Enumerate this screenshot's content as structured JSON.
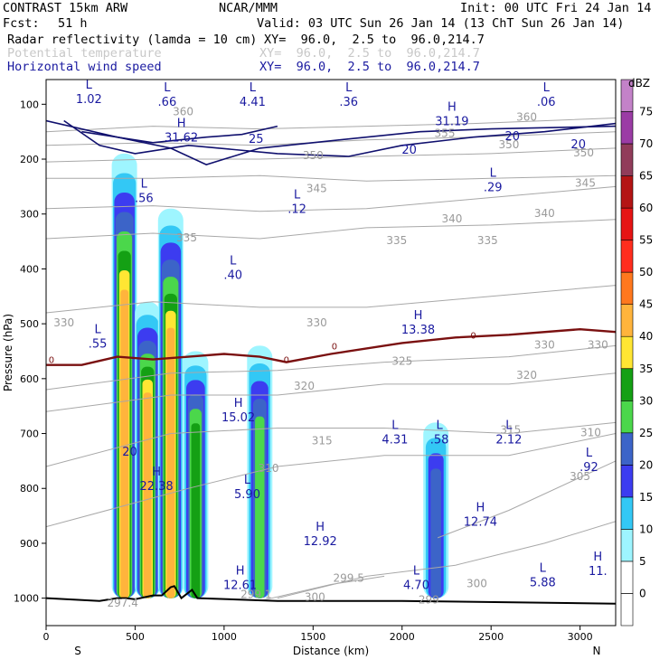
{
  "header": {
    "title": "CONTRAST 15km ARW",
    "org": "NCAR/MMM",
    "init": "Init: 00 UTC Fri 24 Jan 14",
    "fcst_label": "Fcst:",
    "fcst_value": "51 h",
    "valid": "Valid: 03 UTC Sun 26 Jan 14 (13 ChT Sun 26 Jan 14)",
    "fields": [
      {
        "name": "Radar reflectivity (lamda = 10 cm)",
        "xy": "XY=  96.0,  2.5 to  96.0,214.7"
      },
      {
        "name": "Potential temperature",
        "xy": "XY=  96.0,  2.5 to  96.0,214.7"
      },
      {
        "name": "Horizontal wind speed",
        "xy": "XY=  96.0,  2.5 to  96.0,214.7"
      }
    ]
  },
  "chart_data": {
    "type": "cross-section",
    "xlabel": "Distance (km)",
    "ylabel": "Pressure (hPa)",
    "xlim": [
      0,
      3200
    ],
    "ylim": [
      1050,
      55
    ],
    "xticks": [
      0,
      500,
      1000,
      1500,
      2000,
      2500,
      3000
    ],
    "yticks": [
      100,
      200,
      300,
      400,
      500,
      600,
      700,
      800,
      900,
      1000
    ],
    "x_end_labels": {
      "left": "S",
      "right": "N"
    },
    "colorbar": {
      "title": "dBZ",
      "levels": [
        0,
        5,
        10,
        15,
        20,
        25,
        30,
        35,
        40,
        45,
        50,
        55,
        60,
        65,
        70,
        75
      ],
      "colors": [
        "#ffffff",
        "#9ef5ff",
        "#33c8f5",
        "#3c3cf0",
        "#3c64c8",
        "#4bd74b",
        "#14a014",
        "#ffe633",
        "#ffb43c",
        "#ff781e",
        "#ff2d1e",
        "#e61414",
        "#b41414",
        "#913c5a",
        "#9b3ca5",
        "#c382c8"
      ]
    },
    "reflectivity_columns": [
      {
        "x": 440,
        "top": 190,
        "base": 1000,
        "peak_dbz": 40
      },
      {
        "x": 570,
        "top": 460,
        "base": 1000,
        "peak_dbz": 40
      },
      {
        "x": 700,
        "top": 290,
        "base": 1000,
        "peak_dbz": 40
      },
      {
        "x": 840,
        "top": 550,
        "base": 1000,
        "peak_dbz": 30
      },
      {
        "x": 1200,
        "top": 540,
        "base": 1000,
        "peak_dbz": 25
      },
      {
        "x": 2190,
        "top": 680,
        "base": 1000,
        "peak_dbz": 20
      }
    ],
    "theta_contours": [
      {
        "label": "360",
        "points": [
          [
            0,
            150
          ],
          [
            600,
            140
          ],
          [
            1200,
            145
          ],
          [
            1800,
            140
          ],
          [
            2400,
            135
          ],
          [
            3200,
            125
          ]
        ]
      },
      {
        "label": "355",
        "points": [
          [
            0,
            175
          ],
          [
            600,
            170
          ],
          [
            1200,
            175
          ],
          [
            1800,
            165
          ],
          [
            2400,
            160
          ],
          [
            3200,
            150
          ]
        ]
      },
      {
        "label": "350",
        "points": [
          [
            0,
            205
          ],
          [
            600,
            200
          ],
          [
            1200,
            200
          ],
          [
            1800,
            195
          ],
          [
            2500,
            190
          ],
          [
            3200,
            180
          ]
        ]
      },
      {
        "label": "345",
        "points": [
          [
            0,
            235
          ],
          [
            600,
            235
          ],
          [
            1200,
            230
          ],
          [
            1800,
            240
          ],
          [
            2500,
            235
          ],
          [
            3200,
            230
          ]
        ]
      },
      {
        "label": "340",
        "points": [
          [
            0,
            290
          ],
          [
            600,
            285
          ],
          [
            1200,
            295
          ],
          [
            1800,
            290
          ],
          [
            2500,
            270
          ],
          [
            3200,
            250
          ]
        ]
      },
      {
        "label": "335",
        "points": [
          [
            0,
            345
          ],
          [
            600,
            335
          ],
          [
            1200,
            345
          ],
          [
            1800,
            325
          ],
          [
            2500,
            320
          ],
          [
            3200,
            310
          ]
        ]
      },
      {
        "label": "330",
        "points": [
          [
            0,
            480
          ],
          [
            600,
            460
          ],
          [
            1200,
            470
          ],
          [
            1800,
            470
          ],
          [
            2500,
            450
          ],
          [
            3200,
            430
          ]
        ]
      },
      {
        "label": "325",
        "points": [
          [
            0,
            620
          ],
          [
            700,
            590
          ],
          [
            1300,
            585
          ],
          [
            1900,
            570
          ],
          [
            2600,
            560
          ],
          [
            3200,
            540
          ]
        ]
      },
      {
        "label": "320",
        "points": [
          [
            0,
            660
          ],
          [
            700,
            630
          ],
          [
            1300,
            630
          ],
          [
            1900,
            610
          ],
          [
            2600,
            610
          ],
          [
            3200,
            590
          ]
        ]
      },
      {
        "label": "315",
        "points": [
          [
            0,
            760
          ],
          [
            700,
            700
          ],
          [
            1300,
            690
          ],
          [
            1900,
            690
          ],
          [
            2600,
            700
          ],
          [
            3200,
            680
          ]
        ]
      },
      {
        "label": "310",
        "points": [
          [
            0,
            870
          ],
          [
            800,
            800
          ],
          [
            1300,
            760
          ],
          [
            1900,
            740
          ],
          [
            2600,
            740
          ],
          [
            3200,
            700
          ]
        ]
      },
      {
        "label": "305",
        "points": [
          [
            2200,
            890
          ],
          [
            2600,
            840
          ],
          [
            3000,
            780
          ],
          [
            3200,
            750
          ]
        ]
      },
      {
        "label": "300",
        "points": [
          [
            1300,
            1000
          ],
          [
            1800,
            960
          ],
          [
            2300,
            940
          ],
          [
            2800,
            900
          ],
          [
            3200,
            860
          ]
        ]
      },
      {
        "label": "299.5",
        "points": [
          [
            1200,
            1005
          ],
          [
            1600,
            975
          ],
          [
            1900,
            960
          ]
        ]
      }
    ],
    "freezing_level": {
      "label": "0",
      "points": [
        [
          0,
          575
        ],
        [
          200,
          575
        ],
        [
          400,
          560
        ],
        [
          600,
          565
        ],
        [
          800,
          560
        ],
        [
          1000,
          555
        ],
        [
          1200,
          560
        ],
        [
          1350,
          570
        ],
        [
          1600,
          555
        ],
        [
          2000,
          535
        ],
        [
          2300,
          525
        ],
        [
          2600,
          520
        ],
        [
          3000,
          510
        ],
        [
          3200,
          515
        ]
      ]
    },
    "wind_contours": [
      {
        "label": "25",
        "points": [
          [
            200,
            150
          ],
          [
            600,
            170
          ],
          [
            900,
            160
          ],
          [
            1100,
            155
          ],
          [
            1300,
            140
          ]
        ]
      },
      {
        "label": "20",
        "points": [
          [
            0,
            130
          ],
          [
            400,
            160
          ],
          [
            700,
            180
          ],
          [
            900,
            210
          ],
          [
            1200,
            180
          ],
          [
            1500,
            170
          ],
          [
            1800,
            160
          ],
          [
            2100,
            150
          ],
          [
            2500,
            145
          ],
          [
            3200,
            140
          ]
        ]
      },
      {
        "label": "20",
        "points": [
          [
            100,
            130
          ],
          [
            300,
            175
          ],
          [
            500,
            190
          ],
          [
            800,
            175
          ],
          [
            1300,
            190
          ],
          [
            1700,
            195
          ],
          [
            2000,
            175
          ],
          [
            2400,
            160
          ],
          [
            2800,
            150
          ],
          [
            3200,
            135
          ]
        ]
      }
    ],
    "extrema_labels": [
      {
        "kind": "L",
        "value": "1.02",
        "x": 240,
        "p": 75
      },
      {
        "kind": "L",
        "value": ".66",
        "x": 680,
        "p": 80
      },
      {
        "kind": "L",
        "value": "4.41",
        "x": 1160,
        "p": 80
      },
      {
        "kind": "L",
        "value": ".36",
        "x": 1700,
        "p": 80
      },
      {
        "kind": "L",
        "value": ".06",
        "x": 2810,
        "p": 80
      },
      {
        "kind": "H",
        "value": "31.62",
        "x": 760,
        "p": 145
      },
      {
        "kind": "H",
        "value": "31.19",
        "x": 2280,
        "p": 115
      },
      {
        "kind": "L",
        "value": ".56",
        "x": 550,
        "p": 255
      },
      {
        "kind": "L",
        "value": ".12",
        "x": 1410,
        "p": 275
      },
      {
        "kind": "L",
        "value": ".29",
        "x": 2510,
        "p": 235
      },
      {
        "kind": "L",
        "value": ".40",
        "x": 1050,
        "p": 395
      },
      {
        "kind": "H",
        "value": "13.38",
        "x": 2090,
        "p": 495
      },
      {
        "kind": "L",
        "value": ".55",
        "x": 290,
        "p": 520
      },
      {
        "kind": "H",
        "value": "15.02",
        "x": 1080,
        "p": 655
      },
      {
        "kind": "L",
        "value": "4.31",
        "x": 1960,
        "p": 695
      },
      {
        "kind": "L",
        "value": ".58",
        "x": 2210,
        "p": 695
      },
      {
        "kind": "L",
        "value": "2.12",
        "x": 2600,
        "p": 695
      },
      {
        "kind": "L",
        "value": ".92",
        "x": 3050,
        "p": 745
      },
      {
        "kind": "H",
        "value": "22.38",
        "x": 620,
        "p": 780
      },
      {
        "kind": "L",
        "value": "5.90",
        "x": 1130,
        "p": 795
      },
      {
        "kind": "H",
        "value": "12.74",
        "x": 2440,
        "p": 845
      },
      {
        "kind": "H",
        "value": "12.92",
        "x": 1540,
        "p": 880
      },
      {
        "kind": "H",
        "value": "12.61",
        "x": 1090,
        "p": 960
      },
      {
        "kind": "L",
        "value": "4.70",
        "x": 2080,
        "p": 960
      },
      {
        "kind": "L",
        "value": "5.88",
        "x": 2790,
        "p": 955
      },
      {
        "kind": "H",
        "value": "11.",
        "x": 3100,
        "p": 935
      }
    ],
    "wind_labels": [
      {
        "value": "25",
        "x": 1180,
        "p": 170
      },
      {
        "value": "20",
        "x": 2040,
        "p": 190
      },
      {
        "value": "20",
        "x": 2620,
        "p": 165
      },
      {
        "value": "20",
        "x": 2990,
        "p": 180
      },
      {
        "value": "20",
        "x": 470,
        "p": 740
      }
    ],
    "theta_labels": [
      {
        "value": "360",
        "x": 770,
        "p": 120
      },
      {
        "value": "355",
        "x": 2240,
        "p": 160
      },
      {
        "value": "360",
        "x": 2700,
        "p": 130
      },
      {
        "value": "350",
        "x": 1500,
        "p": 200
      },
      {
        "value": "350",
        "x": 2600,
        "p": 180
      },
      {
        "value": "350",
        "x": 3020,
        "p": 195
      },
      {
        "value": "345",
        "x": 1520,
        "p": 260
      },
      {
        "value": "345",
        "x": 3030,
        "p": 250
      },
      {
        "value": "340",
        "x": 2280,
        "p": 315
      },
      {
        "value": "340",
        "x": 2800,
        "p": 305
      },
      {
        "value": "335",
        "x": 790,
        "p": 350
      },
      {
        "value": "335",
        "x": 1970,
        "p": 355
      },
      {
        "value": "335",
        "x": 2480,
        "p": 355
      },
      {
        "value": "330",
        "x": 100,
        "p": 505
      },
      {
        "value": "330",
        "x": 1520,
        "p": 505
      },
      {
        "value": "330",
        "x": 2800,
        "p": 545
      },
      {
        "value": "330",
        "x": 3100,
        "p": 545
      },
      {
        "value": "325",
        "x": 2000,
        "p": 575
      },
      {
        "value": "320",
        "x": 1450,
        "p": 620
      },
      {
        "value": "320",
        "x": 2700,
        "p": 600
      },
      {
        "value": "315",
        "x": 1550,
        "p": 720
      },
      {
        "value": "315",
        "x": 2610,
        "p": 700
      },
      {
        "value": "310",
        "x": 1250,
        "p": 770
      },
      {
        "value": "310",
        "x": 3060,
        "p": 705
      },
      {
        "value": "305",
        "x": 3000,
        "p": 785
      },
      {
        "value": "300",
        "x": 2420,
        "p": 980
      },
      {
        "value": "299.5",
        "x": 1700,
        "p": 970
      },
      {
        "value": "299.1",
        "x": 1180,
        "p": 1000
      },
      {
        "value": "300",
        "x": 1510,
        "p": 1005
      },
      {
        "value": "297.4",
        "x": 430,
        "p": 1015
      },
      {
        "value": "299",
        "x": 2150,
        "p": 1010
      }
    ],
    "freezing_labels": [
      {
        "value": "0",
        "x": 30,
        "p": 565
      },
      {
        "value": "0",
        "x": 1350,
        "p": 565
      },
      {
        "value": "0",
        "x": 1620,
        "p": 540
      },
      {
        "value": "0",
        "x": 2400,
        "p": 520
      }
    ],
    "terrain": [
      [
        0,
        1000
      ],
      [
        300,
        1005
      ],
      [
        400,
        1000
      ],
      [
        450,
        1000
      ],
      [
        500,
        1002
      ],
      [
        600,
        995
      ],
      [
        650,
        995
      ],
      [
        700,
        980
      ],
      [
        720,
        978
      ],
      [
        760,
        1000
      ],
      [
        820,
        985
      ],
      [
        850,
        1000
      ],
      [
        1300,
        1005
      ],
      [
        2000,
        1005
      ],
      [
        3200,
        1010
      ]
    ]
  }
}
